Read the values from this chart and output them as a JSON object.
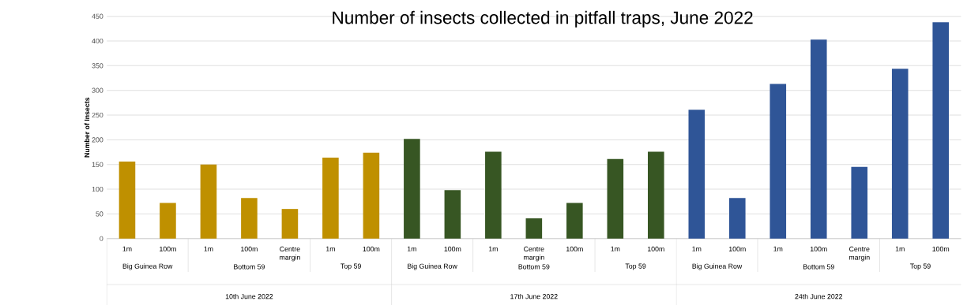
{
  "chart_data": {
    "type": "bar",
    "title": "Number of insects collected in pitfall traps, June 2022",
    "ylabel": "Number of Insects",
    "categories": [
      "1m",
      "100m",
      "1m",
      "100m",
      "Centre margin",
      "1m",
      "100m",
      "1m",
      "100m",
      "1m",
      "Centre margin",
      "100m",
      "1m",
      "100m",
      "1m",
      "100m",
      "1m",
      "100m",
      "Centre margin",
      "1m",
      "100m"
    ],
    "values": [
      156,
      72,
      150,
      82,
      60,
      164,
      174,
      202,
      98,
      176,
      41,
      72,
      161,
      176,
      261,
      82,
      313,
      403,
      145,
      344,
      438
    ],
    "colors": [
      "#bf9000",
      "#bf9000",
      "#bf9000",
      "#bf9000",
      "#bf9000",
      "#bf9000",
      "#bf9000",
      "#375623",
      "#375623",
      "#375623",
      "#375623",
      "#375623",
      "#375623",
      "#375623",
      "#2f5597",
      "#2f5597",
      "#2f5597",
      "#2f5597",
      "#2f5597",
      "#2f5597",
      "#2f5597"
    ],
    "ylim": [
      0,
      450
    ],
    "yticks": [
      0,
      50,
      100,
      150,
      200,
      250,
      300,
      350,
      400,
      450
    ],
    "grid": "y",
    "annotations": [
      "Big Guinea Row",
      "Bottom 59",
      "Top 59",
      "Big Guinea Row",
      "Bottom 59",
      "Top 59",
      "Big Guinea Row",
      "Bottom 59",
      "Top 59",
      "10th June 2022",
      "17th June 2022",
      "24th June 2022"
    ]
  }
}
